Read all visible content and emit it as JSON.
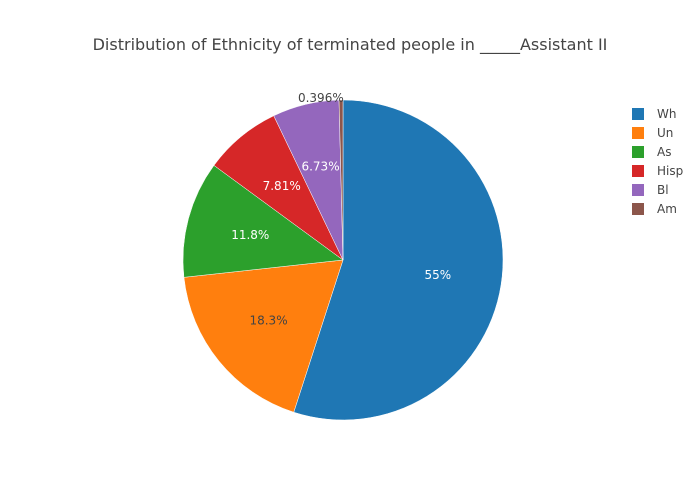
{
  "chart_data": {
    "type": "pie",
    "title": "Distribution of Ethnicity of terminated people in _____Assistant II",
    "legend_position": "top-right",
    "slices": [
      {
        "name": "Wh",
        "value": 55,
        "label": "55%",
        "color": "#1f77b4",
        "label_color": "#ffffff",
        "label_outside": false
      },
      {
        "name": "Un",
        "value": 18.3,
        "label": "18.3%",
        "color": "#ff7f0e",
        "label_color": "#444444",
        "label_outside": false
      },
      {
        "name": "As",
        "value": 11.8,
        "label": "11.8%",
        "color": "#2ca02c",
        "label_color": "#ffffff",
        "label_outside": false
      },
      {
        "name": "Hisp",
        "value": 7.81,
        "label": "7.81%",
        "color": "#d62728",
        "label_color": "#ffffff",
        "label_outside": false
      },
      {
        "name": "Bl",
        "value": 6.73,
        "label": "6.73%",
        "color": "#9467bd",
        "label_color": "#ffffff",
        "label_outside": false
      },
      {
        "name": "Am",
        "value": 0.396,
        "label": "0.396%",
        "color": "#8c564b",
        "label_color": "#444444",
        "label_outside": true
      }
    ]
  }
}
